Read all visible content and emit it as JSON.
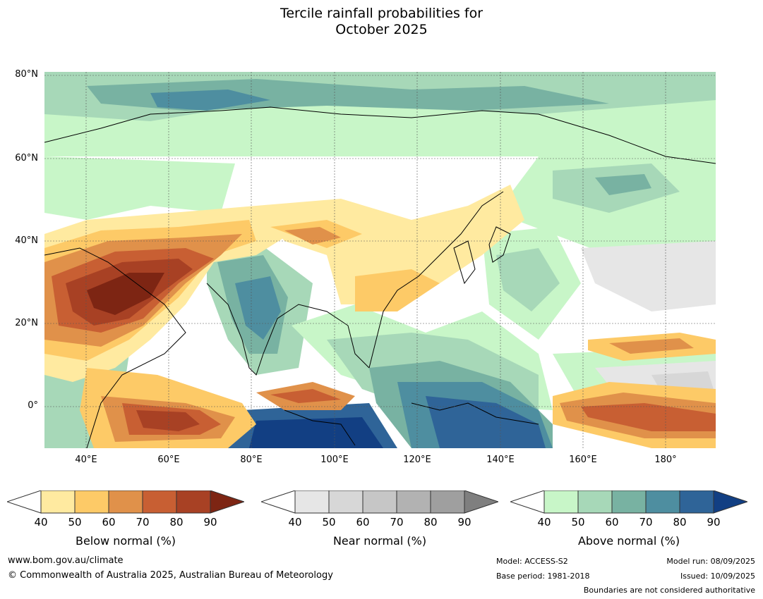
{
  "title_line1": "Tercile rainfall probabilities for",
  "title_line2": "October 2025",
  "map": {
    "lat_labels": [
      "80°N",
      "60°N",
      "40°N",
      "20°N",
      "0°"
    ],
    "lon_labels": [
      "40°E",
      "60°E",
      "80°E",
      "100°E",
      "120°E",
      "140°E",
      "160°E",
      "180°"
    ],
    "extent": {
      "lon_min": 30,
      "lon_max": 192,
      "lat_min": -10,
      "lat_max": 81
    }
  },
  "colorbars": [
    {
      "label": "Below normal (%)",
      "ticks": [
        "40",
        "50",
        "60",
        "70",
        "80",
        "90"
      ],
      "colors": [
        "#ffeaa0",
        "#fdca67",
        "#e0914a",
        "#c85f33",
        "#a84124",
        "#7d2513"
      ]
    },
    {
      "label": "Near normal (%)",
      "ticks": [
        "40",
        "50",
        "60",
        "70",
        "80",
        "90"
      ],
      "colors": [
        "#e6e6e6",
        "#d7d7d7",
        "#c6c6c6",
        "#b2b2b2",
        "#9f9f9f",
        "#7f7f7f"
      ]
    },
    {
      "label": "Above normal (%)",
      "ticks": [
        "40",
        "50",
        "60",
        "70",
        "80",
        "90"
      ],
      "colors": [
        "#c8f6c8",
        "#a7d8b8",
        "#78b2a2",
        "#4e8ea0",
        "#2f6498",
        "#123f83"
      ]
    }
  ],
  "footer": {
    "website": "www.bom.gov.au/climate",
    "copyright": "© Commonwealth of Australia 2025, Australian Bureau of Meteorology",
    "model": "Model: ACCESS-S2",
    "base_period": "Base period: 1981-2018",
    "model_run": "Model run: 08/09/2025",
    "issued": "Issued: 10/09/2025",
    "disclaimer": "Boundaries are not considered authoritative"
  }
}
